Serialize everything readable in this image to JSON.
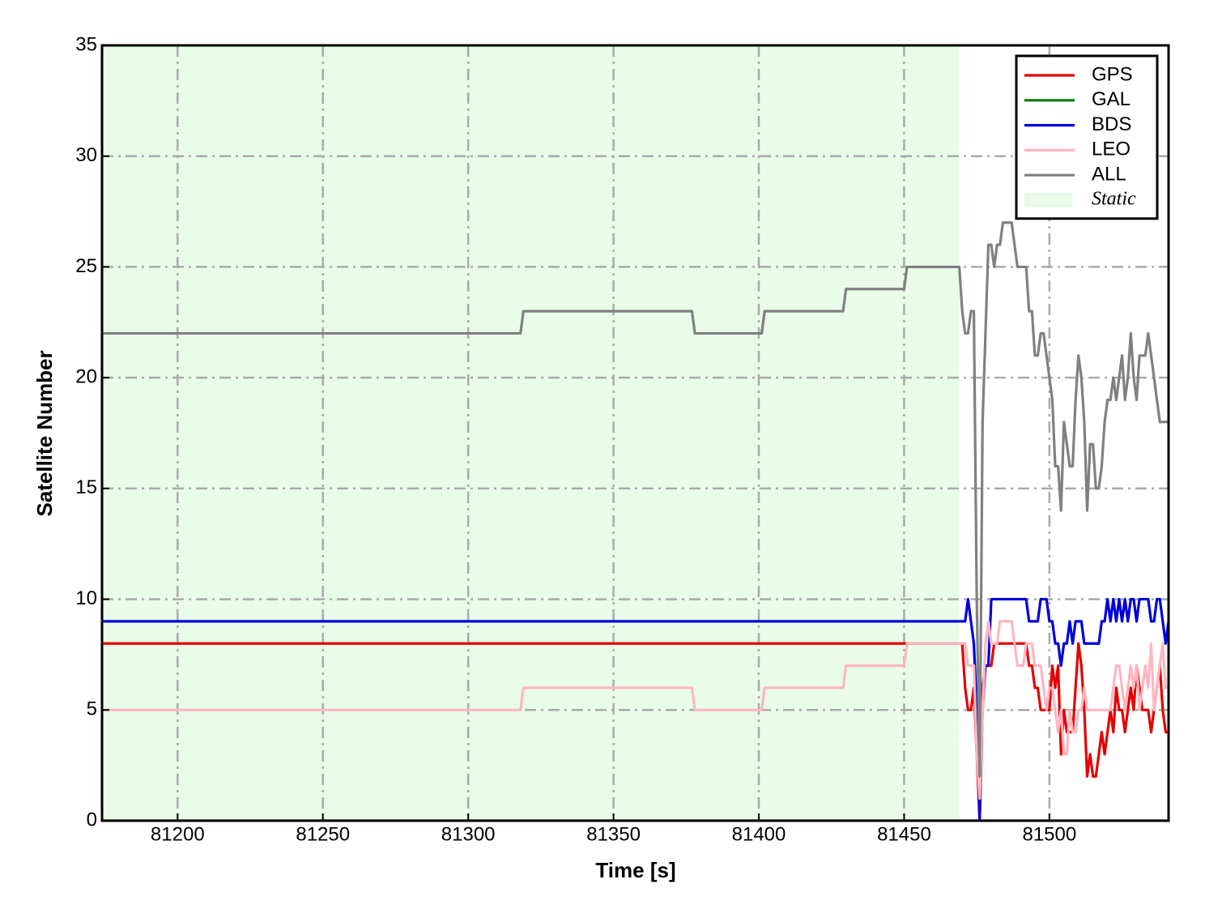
{
  "chart_data": {
    "type": "line",
    "xlabel": "Time [s]",
    "ylabel": "Satellite Number",
    "x": [
      81174,
      81318,
      81319,
      81377,
      81378,
      81401,
      81402,
      81429,
      81430,
      81450,
      81451,
      81469,
      81470,
      81471,
      81472,
      81473,
      81474,
      81475,
      81476,
      81477,
      81478,
      81479,
      81480,
      81481,
      81482,
      81483,
      81484,
      81485,
      81486,
      81487,
      81488,
      81489,
      81490,
      81491,
      81492,
      81493,
      81494,
      81495,
      81496,
      81497,
      81498,
      81499,
      81500,
      81501,
      81502,
      81503,
      81504,
      81505,
      81506,
      81507,
      81508,
      81509,
      81510,
      81511,
      81512,
      81513,
      81514,
      81515,
      81516,
      81517,
      81518,
      81519,
      81520,
      81521,
      81522,
      81523,
      81524,
      81525,
      81526,
      81527,
      81528,
      81529,
      81530,
      81531,
      81532,
      81533,
      81534,
      81535,
      81536,
      81537,
      81538,
      81539,
      81540,
      81541
    ],
    "series": [
      {
        "name": "GPS",
        "color": "#e60000",
        "values": [
          8,
          8,
          8,
          8,
          8,
          8,
          8,
          8,
          8,
          8,
          8,
          8,
          8,
          6,
          5,
          5,
          6,
          3,
          0,
          5,
          7,
          7,
          7,
          8,
          8,
          8,
          8,
          8,
          8,
          8,
          8,
          8,
          8,
          8,
          8,
          7,
          7,
          6,
          6,
          5,
          5,
          5,
          5,
          7,
          6,
          7,
          3,
          5,
          4,
          4,
          4,
          6,
          8,
          7,
          5,
          2,
          3,
          2,
          2,
          3,
          4,
          3,
          4,
          5,
          4,
          6,
          5,
          5,
          4,
          5,
          6,
          5,
          7,
          6,
          5,
          5,
          5,
          4,
          5,
          6,
          7,
          5,
          4,
          4
        ]
      },
      {
        "name": "GAL",
        "color": "#007a00",
        "values": [
          0,
          0,
          0,
          0,
          0,
          0,
          0,
          0,
          0,
          0,
          0,
          0,
          0,
          0,
          0,
          0,
          0,
          0,
          0,
          0,
          0,
          0,
          0,
          0,
          0,
          0,
          0,
          0,
          0,
          0,
          0,
          0,
          0,
          0,
          0,
          0,
          0,
          0,
          0,
          0,
          0,
          0,
          0,
          0,
          0,
          0,
          0,
          0,
          0,
          0,
          0,
          0,
          0,
          0,
          0,
          0,
          0,
          0,
          0,
          0,
          0,
          0,
          0,
          0,
          0,
          0,
          0,
          0,
          0,
          0,
          0,
          0,
          0,
          0,
          0,
          0,
          0,
          0,
          0,
          0,
          0,
          0,
          0,
          0
        ]
      },
      {
        "name": "BDS",
        "color": "#0000dd",
        "values": [
          9,
          9,
          9,
          9,
          9,
          9,
          9,
          9,
          9,
          9,
          9,
          9,
          9,
          9,
          10,
          9,
          8,
          5,
          0,
          6,
          7,
          7,
          10,
          10,
          10,
          10,
          10,
          10,
          10,
          10,
          10,
          10,
          10,
          10,
          10,
          9,
          9,
          9,
          9,
          10,
          10,
          10,
          9,
          9,
          8,
          8,
          7,
          8,
          8,
          9,
          8,
          9,
          9,
          9,
          8,
          8,
          8,
          8,
          8,
          8,
          9,
          9,
          10,
          9,
          10,
          9,
          10,
          9,
          10,
          9,
          10,
          10,
          9,
          10,
          10,
          10,
          10,
          9,
          9,
          10,
          10,
          9,
          8,
          9
        ]
      },
      {
        "name": "LEO",
        "color": "#ffb6c1",
        "values": [
          5,
          5,
          6,
          6,
          5,
          5,
          6,
          6,
          7,
          7,
          8,
          8,
          8,
          8,
          7,
          7,
          7,
          3,
          1,
          5,
          8,
          9,
          8,
          8,
          8,
          9,
          9,
          9,
          9,
          9,
          8,
          7,
          7,
          7,
          8,
          8,
          8,
          7,
          7,
          7,
          6,
          5,
          6,
          6,
          5,
          4,
          5,
          3,
          3,
          5,
          4,
          4,
          5,
          5,
          6,
          5,
          5,
          5,
          5,
          5,
          5,
          5,
          5,
          5,
          6,
          7,
          7,
          6,
          5,
          6,
          7,
          6,
          7,
          5,
          6,
          7,
          6,
          8,
          5,
          6,
          7,
          8,
          6,
          6
        ]
      },
      {
        "name": "ALL",
        "color": "#808080",
        "values": [
          22,
          22,
          23,
          23,
          22,
          22,
          23,
          23,
          24,
          24,
          25,
          25,
          23,
          22,
          22,
          23,
          23,
          10,
          2,
          18,
          22,
          26,
          26,
          25,
          26,
          26,
          27,
          27,
          27,
          27,
          26,
          25,
          25,
          25,
          25,
          23,
          23,
          21,
          21,
          22,
          22,
          21,
          20,
          19,
          16,
          16,
          14,
          18,
          17,
          16,
          16,
          19,
          21,
          20,
          18,
          14,
          17,
          17,
          15,
          15,
          16,
          18,
          19,
          19,
          20,
          19,
          20,
          21,
          19,
          20,
          22,
          20,
          19,
          21,
          21,
          21,
          22,
          21,
          20,
          19,
          18,
          18,
          18,
          18
        ]
      }
    ],
    "shaded": {
      "name": "Static",
      "color": "#e8fce8",
      "x": [
        81174,
        81469
      ]
    },
    "xlim": [
      81174,
      81541
    ],
    "xticks": [
      81200,
      81250,
      81300,
      81350,
      81400,
      81450,
      81500
    ],
    "ylim": [
      0,
      35
    ],
    "yticks": [
      0,
      5,
      10,
      15,
      20,
      25,
      30,
      35
    ],
    "grid": true,
    "legend": "upper right"
  }
}
